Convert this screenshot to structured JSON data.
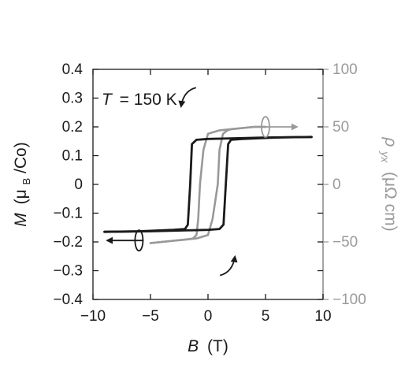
{
  "chart_data": {
    "type": "line",
    "annotation": {
      "symbol": "T",
      "value": "= 150 K"
    },
    "xlabel": {
      "symbol": "B",
      "unit": "(T)"
    },
    "ylabel": {
      "symbol": "M",
      "unit_prefix": "(μ",
      "unit_sub": "B",
      "unit_suffix": "/Co)"
    },
    "y2label": {
      "symbol": "ρ",
      "sub": "yx",
      "unit": "(μΩ cm)"
    },
    "xlim": [
      -10,
      10
    ],
    "ylim": [
      -0.4,
      0.4
    ],
    "y2lim": [
      -100,
      100
    ],
    "xticks": [
      -10,
      -5,
      0,
      5,
      10
    ],
    "xtick_labels": [
      "−10",
      "−5",
      "0",
      "5",
      "10"
    ],
    "yticks": [
      0.4,
      0.3,
      0.2,
      0.1,
      0,
      -0.1,
      -0.2,
      -0.3,
      -0.4
    ],
    "ytick_labels": [
      "0.4",
      "0.3",
      "0.2",
      "0.1",
      "0",
      "−0.1",
      "−0.2",
      "−0.3",
      "−0.4"
    ],
    "y2ticks": [
      100,
      50,
      0,
      -50,
      -100
    ],
    "y2tick_labels": [
      "100",
      "50",
      "0",
      "−50",
      "−100"
    ],
    "grid": false,
    "colors": {
      "magnetization": "#1a1a1a",
      "resistivity": "#999999"
    },
    "series": [
      {
        "axis": "left",
        "color": "#1a1a1a",
        "upper_branch": {
          "x": [
            9,
            5,
            2,
            0,
            -1,
            -1.4,
            -1.55,
            -1.75,
            -2,
            -3,
            -6,
            -9
          ],
          "y": [
            0.165,
            0.163,
            0.16,
            0.158,
            0.155,
            0.14,
            0.0,
            -0.14,
            -0.155,
            -0.158,
            -0.163,
            -0.165
          ]
        },
        "lower_branch": {
          "x": [
            -9,
            -5,
            -2,
            0,
            1,
            1.35,
            1.55,
            1.75,
            2,
            3,
            6,
            9
          ],
          "y": [
            -0.165,
            -0.163,
            -0.16,
            -0.158,
            -0.155,
            -0.14,
            0.0,
            0.14,
            0.155,
            0.158,
            0.163,
            0.165
          ]
        }
      },
      {
        "axis": "right",
        "color": "#999999",
        "upper_branch": {
          "x": [
            5,
            4,
            3,
            2,
            1,
            0,
            -0.4,
            -0.7,
            -0.85,
            -1.0,
            -1.3,
            -2,
            -3,
            -4,
            -5
          ],
          "y": [
            50,
            50,
            49,
            48,
            47,
            44,
            30,
            0,
            -30,
            -44,
            -47,
            -48,
            -49,
            -50,
            -51
          ]
        },
        "lower_branch": {
          "x": [
            -5,
            -4,
            -3,
            -2,
            -1,
            0,
            0.4,
            0.85,
            1.0,
            1.3,
            1.7,
            2,
            3,
            4,
            5
          ],
          "y": [
            -51,
            -50,
            -49,
            -48,
            -47,
            -44,
            -30,
            0,
            30,
            44,
            47,
            48,
            49,
            50,
            50
          ]
        }
      }
    ],
    "arrows": [
      {
        "color": "#1a1a1a",
        "description": "M axis indicator",
        "x": -6,
        "y": -0.195,
        "dir": "left",
        "axis": "left"
      },
      {
        "color": "#999999",
        "description": "rho axis indicator",
        "x": 5,
        "y": 0.2,
        "dir": "right",
        "axis": "left"
      },
      {
        "color": "#1a1a1a",
        "description": "sweep down",
        "x": -2,
        "y": 0.32,
        "axis": "left"
      },
      {
        "color": "#1a1a1a",
        "description": "sweep up",
        "x": 2,
        "y": -0.3,
        "axis": "left"
      }
    ]
  }
}
